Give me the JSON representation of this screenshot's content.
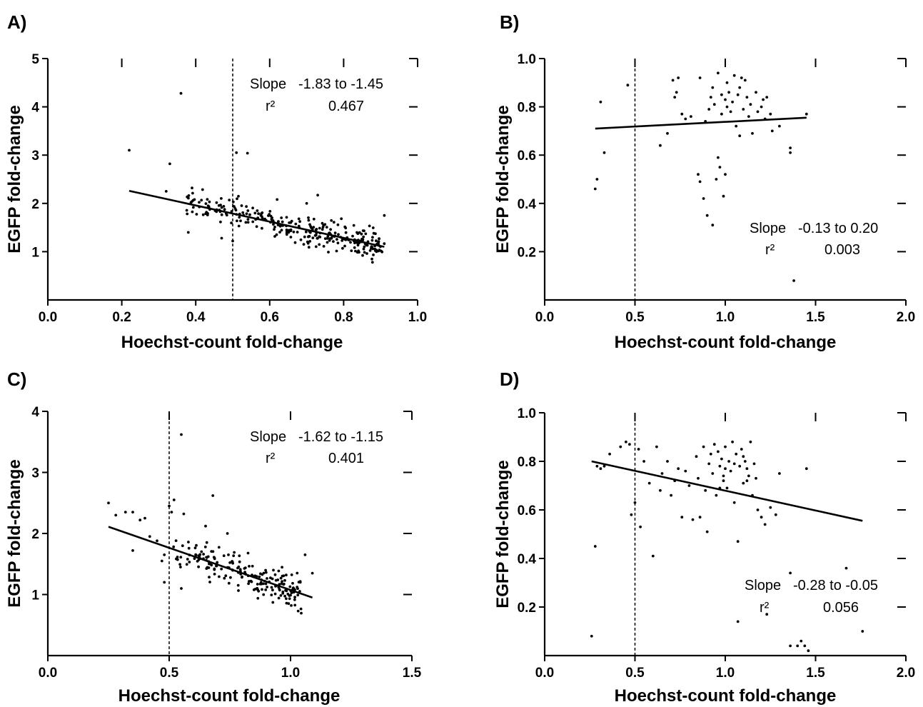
{
  "chart_data": [
    {
      "panel": "A)",
      "type": "scatter",
      "xlabel": "Hoechst-count fold-change",
      "ylabel": "EGFP fold-change",
      "xlim": [
        0.0,
        1.0
      ],
      "ylim": [
        0.0,
        5.0
      ],
      "xticks": [
        0.0,
        0.2,
        0.4,
        0.6,
        0.8,
        1.0
      ],
      "xtick_labels": [
        "0.0",
        "0.2",
        "0.4",
        "0.6",
        "0.8",
        "1.0"
      ],
      "yticks": [
        1,
        2,
        3,
        4,
        5
      ],
      "ytick_labels": [
        "1",
        "2",
        "3",
        "4",
        "5"
      ],
      "threshold_x": 0.5,
      "fit_line": [
        [
          0.22,
          2.26
        ],
        [
          0.91,
          1.1
        ]
      ],
      "annotation": {
        "slope_label": "Slope",
        "slope_value": "-1.83 to -1.45",
        "r2_label": "r²",
        "r2_value": "0.467"
      },
      "outliers": [
        [
          0.22,
          3.1
        ],
        [
          0.33,
          2.82
        ],
        [
          0.36,
          4.28
        ],
        [
          0.51,
          3.05
        ],
        [
          0.54,
          3.04
        ],
        [
          0.73,
          2.17
        ],
        [
          0.32,
          2.25
        ],
        [
          0.39,
          2.32
        ],
        [
          0.38,
          1.4
        ],
        [
          0.47,
          1.28
        ],
        [
          0.91,
          1.75
        ],
        [
          0.62,
          2.08
        ],
        [
          0.7,
          2.0
        ],
        [
          0.5,
          1.22
        ]
      ],
      "cluster": {
        "x_range": [
          0.35,
          0.91
        ],
        "x_bias": 1.4,
        "count": 300,
        "spread": 0.14
      }
    },
    {
      "panel": "B)",
      "type": "scatter",
      "xlabel": "Hoechst-count fold-change",
      "ylabel": "EGFP fold-change",
      "xlim": [
        0.0,
        2.0
      ],
      "ylim": [
        0.0,
        1.0
      ],
      "xticks": [
        0.0,
        0.5,
        1.0,
        1.5,
        2.0
      ],
      "xtick_labels": [
        "0.0",
        "0.5",
        "1.0",
        "1.5",
        "2.0"
      ],
      "yticks": [
        0.2,
        0.4,
        0.6,
        0.8,
        1.0
      ],
      "ytick_labels": [
        "0.2",
        "0.4",
        "0.6",
        "0.8",
        "1.0"
      ],
      "threshold_x": 0.5,
      "fit_line": [
        [
          0.28,
          0.71
        ],
        [
          1.45,
          0.755
        ]
      ],
      "annotation": {
        "slope_label": "Slope",
        "slope_value": "-0.13 to 0.20",
        "r2_label": "r²",
        "r2_value": "0.003"
      },
      "points": [
        [
          0.28,
          0.46
        ],
        [
          0.29,
          0.5
        ],
        [
          0.31,
          0.82
        ],
        [
          0.33,
          0.61
        ],
        [
          0.46,
          0.89
        ],
        [
          0.64,
          0.64
        ],
        [
          0.68,
          0.69
        ],
        [
          0.71,
          0.91
        ],
        [
          0.72,
          0.84
        ],
        [
          0.73,
          0.86
        ],
        [
          0.74,
          0.92
        ],
        [
          0.76,
          0.77
        ],
        [
          0.78,
          0.75
        ],
        [
          0.85,
          0.52
        ],
        [
          0.86,
          0.49
        ],
        [
          0.86,
          0.92
        ],
        [
          0.88,
          0.42
        ],
        [
          0.9,
          0.35
        ],
        [
          0.91,
          0.79
        ],
        [
          0.92,
          0.84
        ],
        [
          0.93,
          0.88
        ],
        [
          0.93,
          0.31
        ],
        [
          0.94,
          0.81
        ],
        [
          0.95,
          0.5
        ],
        [
          0.96,
          0.94
        ],
        [
          0.96,
          0.59
        ],
        [
          0.97,
          0.55
        ],
        [
          0.98,
          0.85
        ],
        [
          0.98,
          0.77
        ],
        [
          0.99,
          0.43
        ],
        [
          1.0,
          0.83
        ],
        [
          1.0,
          0.52
        ],
        [
          1.01,
          0.9
        ],
        [
          1.01,
          0.8
        ],
        [
          1.02,
          0.86
        ],
        [
          1.03,
          0.78
        ],
        [
          1.04,
          0.82
        ],
        [
          1.05,
          0.93
        ],
        [
          1.06,
          0.72
        ],
        [
          1.07,
          0.85
        ],
        [
          1.08,
          0.88
        ],
        [
          1.08,
          0.68
        ],
        [
          1.09,
          0.92
        ],
        [
          1.1,
          0.79
        ],
        [
          1.11,
          0.91
        ],
        [
          1.12,
          0.84
        ],
        [
          1.13,
          0.76
        ],
        [
          1.14,
          0.81
        ],
        [
          1.15,
          0.69
        ],
        [
          1.17,
          0.86
        ],
        [
          1.18,
          0.78
        ],
        [
          1.2,
          0.8
        ],
        [
          1.21,
          0.83
        ],
        [
          1.22,
          0.75
        ],
        [
          1.23,
          0.84
        ],
        [
          1.25,
          0.77
        ],
        [
          1.26,
          0.7
        ],
        [
          1.3,
          0.72
        ],
        [
          1.36,
          0.61
        ],
        [
          1.36,
          0.63
        ],
        [
          1.38,
          0.08
        ],
        [
          1.45,
          0.77
        ],
        [
          0.81,
          0.76
        ],
        [
          0.89,
          0.74
        ]
      ]
    },
    {
      "panel": "C)",
      "type": "scatter",
      "xlabel": "Hoechst-count fold-change",
      "ylabel": "EGFP fold-change",
      "xlim": [
        0.0,
        1.5
      ],
      "ylim": [
        0.0,
        4.0
      ],
      "xticks": [
        0.0,
        0.5,
        1.0,
        1.5
      ],
      "xtick_labels": [
        "0.0",
        "0.5",
        "1.0",
        "1.5"
      ],
      "yticks": [
        1,
        2,
        3,
        4
      ],
      "ytick_labels": [
        "1",
        "2",
        "3",
        "4"
      ],
      "threshold_x": 0.5,
      "fit_line": [
        [
          0.25,
          2.11
        ],
        [
          1.09,
          0.95
        ]
      ],
      "annotation": {
        "slope_label": "Slope",
        "slope_value": "-1.62 to -1.15",
        "r2_label": "r²",
        "r2_value": "0.401"
      },
      "outliers": [
        [
          0.25,
          2.5
        ],
        [
          0.28,
          2.3
        ],
        [
          0.32,
          2.35
        ],
        [
          0.35,
          2.35
        ],
        [
          0.38,
          2.22
        ],
        [
          0.4,
          2.25
        ],
        [
          0.42,
          1.95
        ],
        [
          0.45,
          1.88
        ],
        [
          0.47,
          1.55
        ],
        [
          0.48,
          1.2
        ],
        [
          0.5,
          2.45
        ],
        [
          0.51,
          2.35
        ],
        [
          0.52,
          2.55
        ],
        [
          0.55,
          3.62
        ],
        [
          0.56,
          2.32
        ],
        [
          0.68,
          2.62
        ],
        [
          0.74,
          2.0
        ],
        [
          0.65,
          2.12
        ],
        [
          0.35,
          1.72
        ],
        [
          0.48,
          1.65
        ],
        [
          1.06,
          1.65
        ],
        [
          1.09,
          1.35
        ],
        [
          0.55,
          1.1
        ]
      ],
      "cluster": {
        "x_range": [
          0.48,
          1.05
        ],
        "x_bias": 1.6,
        "count": 200,
        "spread": 0.14
      }
    },
    {
      "panel": "D)",
      "type": "scatter",
      "xlabel": "Hoechst-count fold-change",
      "ylabel": "EGFP fold-change",
      "xlim": [
        0.0,
        2.0
      ],
      "ylim": [
        0.0,
        1.0
      ],
      "xticks": [
        0.0,
        0.5,
        1.0,
        1.5,
        2.0
      ],
      "xtick_labels": [
        "0.0",
        "0.5",
        "1.0",
        "1.5",
        "2.0"
      ],
      "yticks": [
        0.2,
        0.4,
        0.6,
        0.8,
        1.0
      ],
      "ytick_labels": [
        "0.2",
        "0.4",
        "0.6",
        "0.8",
        "1.0"
      ],
      "threshold_x": 0.5,
      "fit_line": [
        [
          0.26,
          0.8
        ],
        [
          1.76,
          0.555
        ]
      ],
      "annotation": {
        "slope_label": "Slope",
        "slope_value": "-0.28 to -0.05",
        "r2_label": "r²",
        "r2_value": "0.056"
      },
      "points": [
        [
          0.26,
          0.08
        ],
        [
          0.28,
          0.45
        ],
        [
          0.29,
          0.78
        ],
        [
          0.31,
          0.77
        ],
        [
          0.33,
          0.78
        ],
        [
          0.36,
          0.83
        ],
        [
          0.42,
          0.86
        ],
        [
          0.45,
          0.88
        ],
        [
          0.47,
          0.87
        ],
        [
          0.48,
          0.58
        ],
        [
          0.5,
          0.63
        ],
        [
          0.52,
          0.85
        ],
        [
          0.53,
          0.53
        ],
        [
          0.55,
          0.8
        ],
        [
          0.58,
          0.71
        ],
        [
          0.6,
          0.41
        ],
        [
          0.62,
          0.86
        ],
        [
          0.64,
          0.68
        ],
        [
          0.65,
          0.75
        ],
        [
          0.68,
          0.8
        ],
        [
          0.7,
          0.66
        ],
        [
          0.72,
          0.72
        ],
        [
          0.74,
          0.77
        ],
        [
          0.76,
          0.57
        ],
        [
          0.78,
          0.76
        ],
        [
          0.8,
          0.7
        ],
        [
          0.82,
          0.56
        ],
        [
          0.84,
          0.82
        ],
        [
          0.85,
          0.73
        ],
        [
          0.86,
          0.57
        ],
        [
          0.88,
          0.86
        ],
        [
          0.89,
          0.68
        ],
        [
          0.9,
          0.51
        ],
        [
          0.91,
          0.79
        ],
        [
          0.92,
          0.83
        ],
        [
          0.93,
          0.75
        ],
        [
          0.94,
          0.87
        ],
        [
          0.95,
          0.66
        ],
        [
          0.96,
          0.84
        ],
        [
          0.97,
          0.78
        ],
        [
          0.98,
          0.81
        ],
        [
          0.99,
          0.72
        ],
        [
          1.0,
          0.86
        ],
        [
          1.01,
          0.69
        ],
        [
          1.02,
          0.8
        ],
        [
          1.03,
          0.76
        ],
        [
          1.04,
          0.88
        ],
        [
          1.05,
          0.63
        ],
        [
          1.06,
          0.83
        ],
        [
          1.07,
          0.47
        ],
        [
          1.08,
          0.78
        ],
        [
          1.09,
          0.85
        ],
        [
          1.1,
          0.71
        ],
        [
          1.11,
          0.8
        ],
        [
          1.12,
          0.77
        ],
        [
          1.13,
          0.74
        ],
        [
          1.14,
          0.88
        ],
        [
          1.15,
          0.66
        ],
        [
          1.16,
          0.79
        ],
        [
          1.17,
          0.73
        ],
        [
          1.18,
          0.6
        ],
        [
          1.2,
          0.57
        ],
        [
          1.22,
          0.54
        ],
        [
          1.23,
          0.17
        ],
        [
          1.25,
          0.61
        ],
        [
          1.28,
          0.58
        ],
        [
          1.3,
          0.75
        ],
        [
          1.36,
          0.34
        ],
        [
          1.36,
          0.04
        ],
        [
          1.4,
          0.04
        ],
        [
          1.42,
          0.06
        ],
        [
          1.44,
          0.04
        ],
        [
          1.45,
          0.77
        ],
        [
          1.46,
          0.02
        ],
        [
          1.67,
          0.36
        ],
        [
          1.76,
          0.1
        ],
        [
          1.07,
          0.14
        ],
        [
          0.99,
          0.74
        ],
        [
          1.1,
          0.82
        ],
        [
          0.97,
          0.69
        ],
        [
          1.05,
          0.79
        ],
        [
          1.0,
          0.77
        ],
        [
          1.12,
          0.72
        ]
      ]
    }
  ]
}
